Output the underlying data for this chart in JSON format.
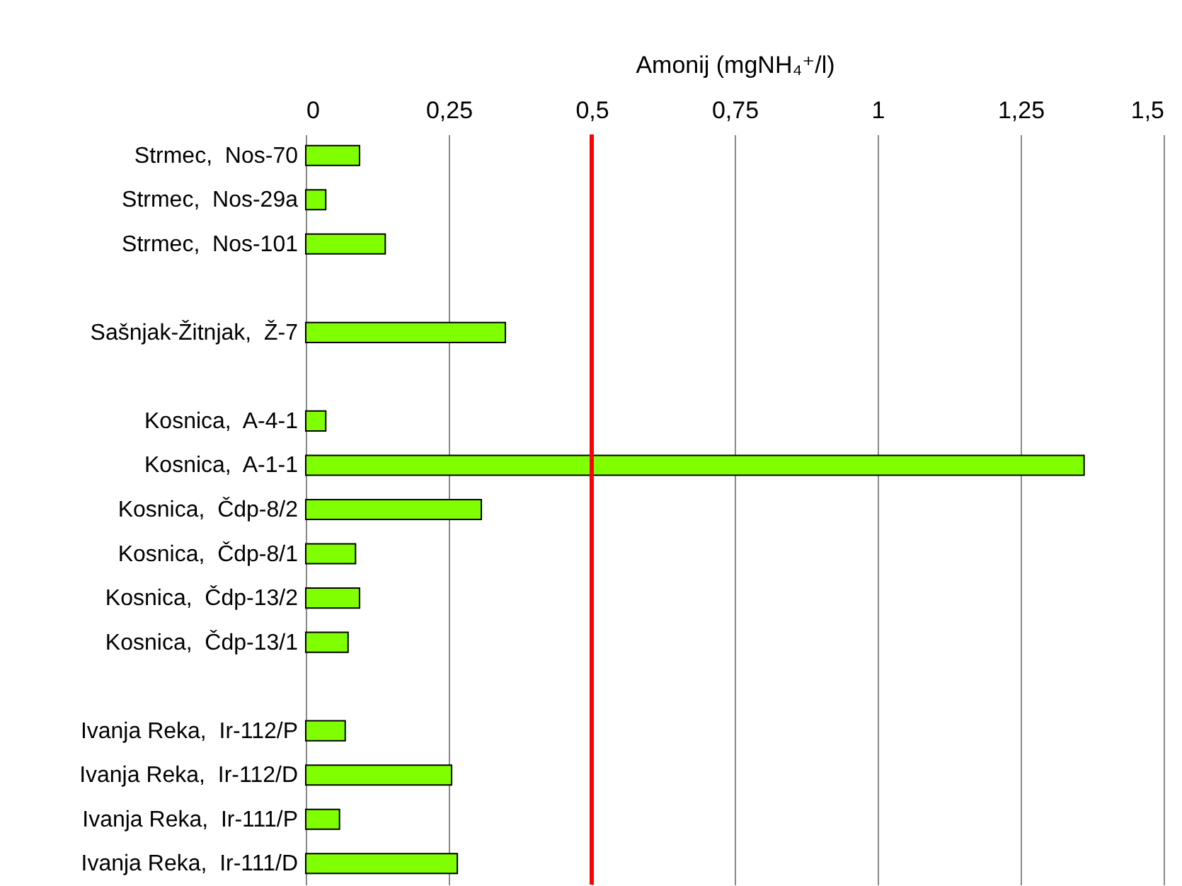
{
  "chart_data": {
    "type": "bar",
    "orientation": "horizontal",
    "xlabel": "Amonij (mgNH₄⁺/l)",
    "categories": [
      "Strmec,  Nos-70",
      "Strmec,  Nos-29a",
      "Strmec,  Nos-101",
      null,
      "Sašnjak-Žitnjak,  Ž-7",
      null,
      "Kosnica,  A-4-1",
      "Kosnica,  A-1-1",
      "Kosnica,  Čdp-8/2",
      "Kosnica,  Čdp-8/1",
      "Kosnica,  Čdp-13/2",
      "Kosnica,  Čdp-13/1",
      null,
      "Ivanja Reka,  Ir-112/P",
      "Ivanja Reka,  Ir-112/D",
      "Ivanja Reka,  Ir-111/P",
      "Ivanja Reka,  Ir-111/D"
    ],
    "values": [
      0.094,
      0.035,
      0.139,
      null,
      0.349,
      null,
      0.035,
      1.361,
      0.307,
      0.087,
      0.094,
      0.074,
      null,
      0.069,
      0.255,
      0.059,
      0.265
    ],
    "color": "#80ff00",
    "xlim": [
      0,
      1.5
    ],
    "xticks": [
      0,
      {
        "value": 0.25,
        "label": "0,25"
      },
      {
        "value": 0.5,
        "label": "0,5"
      },
      {
        "value": 0.75,
        "label": "0,75"
      },
      1,
      {
        "value": 1.25,
        "label": "1,25"
      },
      {
        "value": 1.5,
        "label": "1,5"
      }
    ],
    "grid": "x",
    "ref_lines": [
      {
        "axis": "x",
        "value": 0.5,
        "color": "#ff0000"
      }
    ]
  }
}
